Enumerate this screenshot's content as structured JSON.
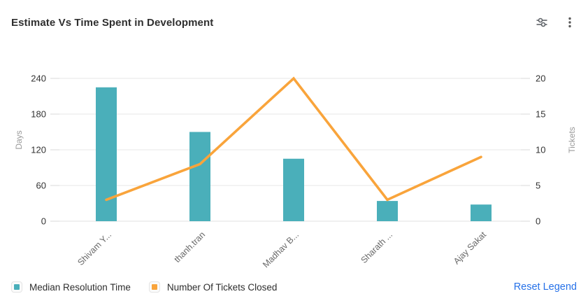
{
  "header": {
    "title": "Estimate Vs Time Spent in Development",
    "actions": [
      {
        "name": "filter-settings",
        "icon": "sliders-icon"
      },
      {
        "name": "more-options",
        "icon": "kebab-menu-icon"
      }
    ]
  },
  "chart_data": {
    "type": "bar",
    "title": "Estimate Vs Time Spent in Development",
    "categories": [
      "Shivam Y...",
      "thanh.tran",
      "Madhav B...",
      "Sharath ...",
      "Ajay Sakat"
    ],
    "series": [
      {
        "name": "Median Resolution Time",
        "type": "bar",
        "axis": "left",
        "color": "#4aafba",
        "values": [
          225,
          150,
          105,
          34,
          28
        ]
      },
      {
        "name": "Number Of Tickets Closed",
        "type": "line",
        "axis": "right",
        "color": "#f9a43b",
        "values": [
          3,
          8,
          20,
          3,
          9
        ]
      }
    ],
    "ylabel_left": "Days",
    "ylabel_right": "Tickets",
    "yticks_left": [
      0,
      60,
      120,
      180,
      240
    ],
    "yticks_right": [
      0,
      5,
      10,
      15,
      20
    ],
    "ylim_left": [
      0,
      240
    ],
    "ylim_right": [
      0,
      20
    ],
    "grid": true,
    "legend_position": "bottom-left",
    "colors": {
      "bar": "#4aafba",
      "line": "#f9a43b",
      "gridline": "#ececec",
      "tick_mark": "#e0e0e0",
      "tick_label": "#333333",
      "axis_name": "#9a9a9a",
      "x_label": "#696969"
    }
  },
  "footer": {
    "reset_label": "Reset Legend"
  }
}
